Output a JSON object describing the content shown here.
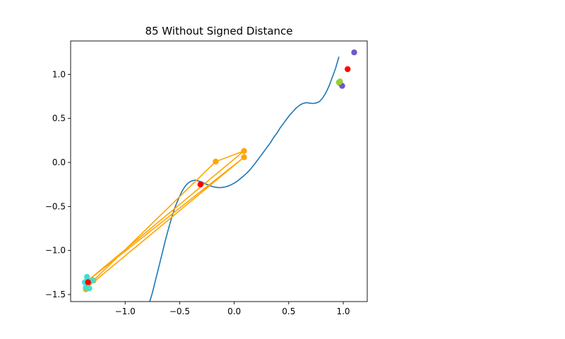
{
  "chart_data": {
    "type": "scatter",
    "title": "85 Without Signed Distance",
    "xlabel": "",
    "ylabel": "",
    "xlim": [
      -1.5,
      1.22
    ],
    "ylim": [
      -1.58,
      1.38
    ],
    "x_ticks": [
      -1.0,
      -0.5,
      0.0,
      0.5,
      1.0
    ],
    "x_tick_labels": [
      "−1.0",
      "−0.5",
      "0.0",
      "0.5",
      "1.0"
    ],
    "y_ticks": [
      -1.5,
      -1.0,
      -0.5,
      0.0,
      0.5,
      1.0
    ],
    "y_tick_labels": [
      "−1.5",
      "−1.0",
      "−0.5",
      "0.0",
      "0.5",
      "1.0"
    ],
    "grid": false,
    "curve": {
      "color": "#1f77b4",
      "x": [
        -0.78,
        -0.75,
        -0.72,
        -0.69,
        -0.66,
        -0.63,
        -0.6,
        -0.57,
        -0.54,
        -0.51,
        -0.48,
        -0.45,
        -0.42,
        -0.39,
        -0.36,
        -0.33,
        -0.3,
        -0.27,
        -0.24,
        -0.21,
        -0.18,
        -0.15,
        -0.12,
        -0.09,
        -0.06,
        -0.03,
        0.0,
        0.03,
        0.06,
        0.09,
        0.12,
        0.15,
        0.18,
        0.21,
        0.24,
        0.27,
        0.3,
        0.33,
        0.36,
        0.39,
        0.42,
        0.45,
        0.48,
        0.51,
        0.54,
        0.57,
        0.6,
        0.63,
        0.66,
        0.69,
        0.72,
        0.75,
        0.78,
        0.81,
        0.84,
        0.87,
        0.9,
        0.93,
        0.96
      ],
      "y": [
        -1.6,
        -1.48,
        -1.33,
        -1.18,
        -1.03,
        -0.88,
        -0.74,
        -0.61,
        -0.5,
        -0.41,
        -0.33,
        -0.27,
        -0.23,
        -0.21,
        -0.2,
        -0.21,
        -0.22,
        -0.24,
        -0.255,
        -0.27,
        -0.28,
        -0.285,
        -0.285,
        -0.28,
        -0.27,
        -0.255,
        -0.235,
        -0.21,
        -0.18,
        -0.15,
        -0.115,
        -0.075,
        -0.03,
        0.02,
        0.07,
        0.12,
        0.17,
        0.22,
        0.28,
        0.33,
        0.39,
        0.44,
        0.49,
        0.54,
        0.58,
        0.62,
        0.65,
        0.67,
        0.68,
        0.675,
        0.67,
        0.675,
        0.69,
        0.73,
        0.79,
        0.87,
        0.97,
        1.07,
        1.2
      ]
    },
    "series": [
      {
        "color": "#ffa500",
        "line": true,
        "x": [
          -1.36,
          -1.29,
          -0.17,
          0.09,
          -1.36,
          0.09,
          -1.36
        ],
        "y": [
          -1.44,
          -1.34,
          0.01,
          0.13,
          -1.36,
          0.06,
          -1.43
        ]
      },
      {
        "color": "#40e0d0",
        "line": false,
        "x": [
          -1.35,
          -1.37,
          -1.33,
          -1.3,
          -1.36
        ],
        "y": [
          -1.3,
          -1.36,
          -1.43,
          -1.34,
          -1.42
        ]
      },
      {
        "color": "#ff0000",
        "line": false,
        "x": [
          -1.34,
          -0.31,
          1.04
        ],
        "y": [
          -1.36,
          -0.25,
          1.06
        ]
      },
      {
        "color": "#6a5acd",
        "line": false,
        "x": [
          1.1,
          0.99,
          0.97
        ],
        "y": [
          1.25,
          0.87,
          0.9
        ]
      },
      {
        "color": "#9acd32",
        "line": false,
        "x": [
          0.96,
          0.97
        ],
        "y": [
          0.91,
          0.92
        ]
      }
    ]
  }
}
